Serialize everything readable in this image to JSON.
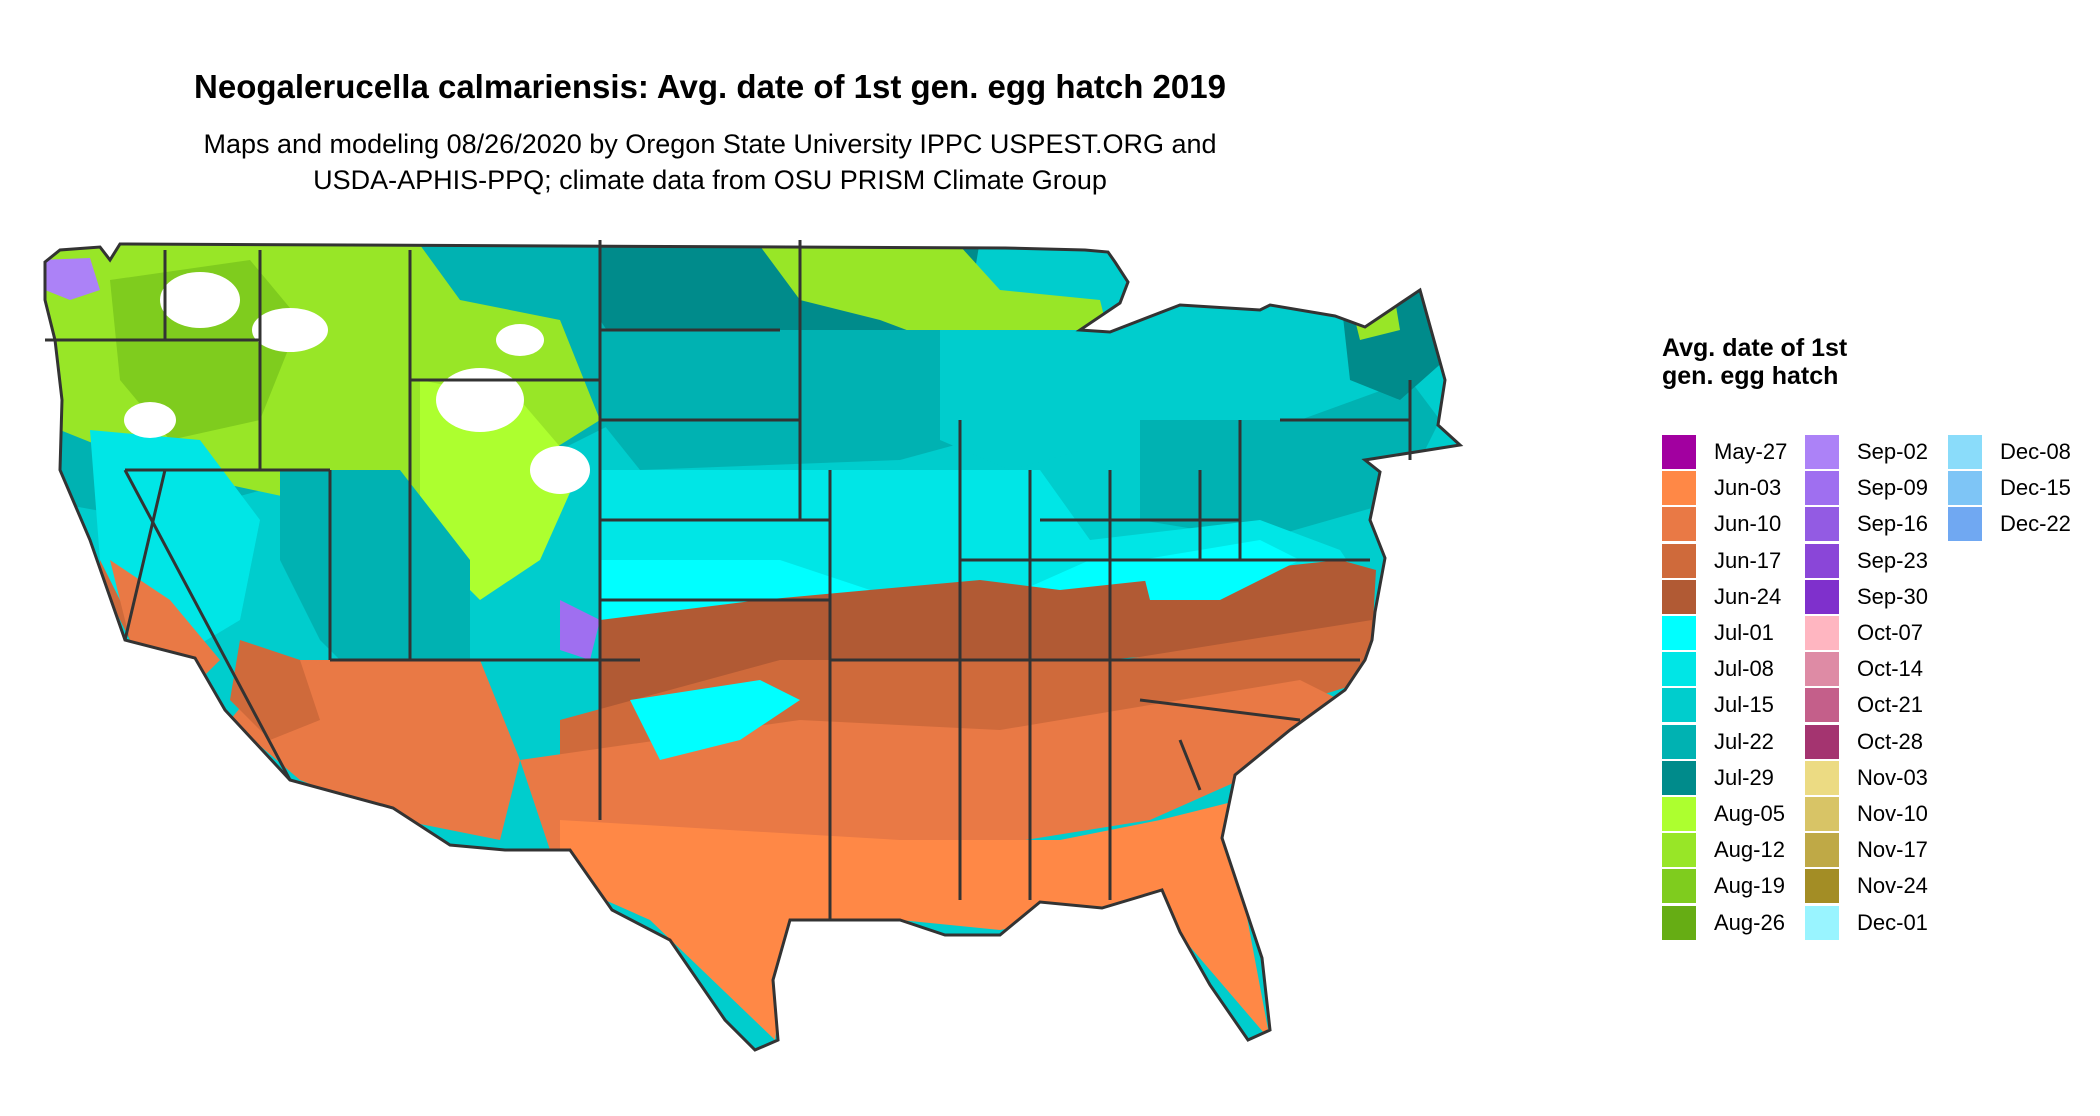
{
  "title": "Neogalerucella calmariensis: Avg. date of 1st gen. egg hatch 2019",
  "subtitle_line1": "Maps and modeling 08/26/2020 by Oregon State University IPPC USPEST.ORG and",
  "subtitle_line2": "USDA-APHIS-PPQ; climate data from OSU PRISM Climate Group",
  "legend": {
    "title": "Avg. date of 1st gen. egg hatch",
    "items": [
      {
        "label": "May-27",
        "color": "#A200A0"
      },
      {
        "label": "Jun-03",
        "color": "#FF8846"
      },
      {
        "label": "Jun-10",
        "color": "#E97945"
      },
      {
        "label": "Jun-17",
        "color": "#CF6A3B"
      },
      {
        "label": "Jun-24",
        "color": "#B15A34"
      },
      {
        "label": "Jul-01",
        "color": "#00FFFF"
      },
      {
        "label": "Jul-08",
        "color": "#00E6E6"
      },
      {
        "label": "Jul-15",
        "color": "#00CDCD"
      },
      {
        "label": "Jul-22",
        "color": "#00B2B2"
      },
      {
        "label": "Jul-29",
        "color": "#008B8B"
      },
      {
        "label": "Aug-05",
        "color": "#ADFF2F"
      },
      {
        "label": "Aug-12",
        "color": "#98E627"
      },
      {
        "label": "Aug-19",
        "color": "#7FCC1E"
      },
      {
        "label": "Aug-26",
        "color": "#66AD14"
      },
      {
        "label": "Sep-02",
        "color": "#AC82F7"
      },
      {
        "label": "Sep-09",
        "color": "#9F6FF0"
      },
      {
        "label": "Sep-16",
        "color": "#935BE3"
      },
      {
        "label": "Sep-23",
        "color": "#8A46D8"
      },
      {
        "label": "Sep-30",
        "color": "#7F30CC"
      },
      {
        "label": "Oct-07",
        "color": "#FFB6C1"
      },
      {
        "label": "Oct-14",
        "color": "#DE8BA5"
      },
      {
        "label": "Oct-21",
        "color": "#C45F8A"
      },
      {
        "label": "Oct-28",
        "color": "#A43470"
      },
      {
        "label": "Nov-03",
        "color": "#ECDB83"
      },
      {
        "label": "Nov-10",
        "color": "#D8C466"
      },
      {
        "label": "Nov-17",
        "color": "#BFA946"
      },
      {
        "label": "Nov-24",
        "color": "#A38D25"
      },
      {
        "label": "Dec-01",
        "color": "#99F4FF"
      },
      {
        "label": "Dec-08",
        "color": "#8ADCFA"
      },
      {
        "label": "Dec-15",
        "color": "#7EC5F6"
      },
      {
        "label": "Dec-22",
        "color": "#70A8F2"
      }
    ]
  }
}
